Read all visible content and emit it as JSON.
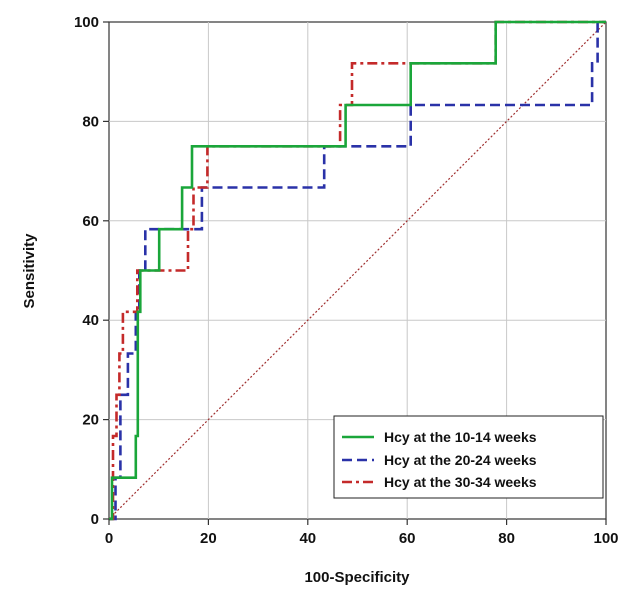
{
  "chart_data": {
    "type": "line",
    "xlabel": "100-Specificity",
    "ylabel": "Sensitivity",
    "xlim": [
      0,
      100
    ],
    "ylim": [
      0,
      100
    ],
    "x_ticks": [
      0,
      20,
      40,
      60,
      80,
      100
    ],
    "y_ticks": [
      0,
      20,
      40,
      60,
      80,
      100
    ],
    "grid": true,
    "legend_position": "bottom-right",
    "series": [
      {
        "name": "Hcy at the 10-14 weeks",
        "color": "#1aa63a",
        "style": "solid",
        "x": [
          0,
          0.6,
          0.6,
          1.8,
          1.8,
          5.4,
          5.4,
          5.8,
          5.8,
          6.3,
          6.3,
          10.1,
          10.1,
          14.7,
          14.7,
          16.7,
          16.7,
          47.6,
          47.6,
          60.7,
          60.7,
          77.8,
          77.8,
          100
        ],
        "y": [
          0,
          0,
          8.3,
          8.3,
          8.3,
          8.3,
          16.7,
          16.7,
          41.7,
          41.7,
          50.0,
          50.0,
          58.3,
          58.3,
          66.7,
          66.7,
          75.0,
          75.0,
          83.3,
          83.3,
          91.7,
          91.7,
          100,
          100
        ]
      },
      {
        "name": "Hcy at the 20-24 weeks",
        "color": "#2a32a8",
        "style": "dashed",
        "x": [
          0,
          1.3,
          1.3,
          2.3,
          2.3,
          3.8,
          3.8,
          5.4,
          5.4,
          6.1,
          6.1,
          7.3,
          7.3,
          15.5,
          15.5,
          18.7,
          18.7,
          43.3,
          43.3,
          60.7,
          60.7,
          97.2,
          97.2,
          98.3,
          98.3,
          100
        ],
        "y": [
          0,
          0,
          8.3,
          8.3,
          25.0,
          25.0,
          33.3,
          33.3,
          41.7,
          41.7,
          50.0,
          50.0,
          58.3,
          58.3,
          58.3,
          58.3,
          66.7,
          66.7,
          75.0,
          75.0,
          83.3,
          83.3,
          91.7,
          91.7,
          100,
          100
        ]
      },
      {
        "name": "Hcy at the 30-34 weeks",
        "color": "#c42a2a",
        "style": "dashdot",
        "x": [
          0,
          0.8,
          0.8,
          1.5,
          1.5,
          2.1,
          2.1,
          2.8,
          2.8,
          5.7,
          5.7,
          7.8,
          7.8,
          15.9,
          15.9,
          17.0,
          17.0,
          19.8,
          19.8,
          46.5,
          46.5,
          48.9,
          48.9,
          77.8,
          77.8,
          100
        ],
        "y": [
          0,
          0,
          16.7,
          16.7,
          25.0,
          25.0,
          33.3,
          33.3,
          41.7,
          41.7,
          50.0,
          50.0,
          50.0,
          50.0,
          58.3,
          58.3,
          66.7,
          66.7,
          75.0,
          75.0,
          83.3,
          83.3,
          91.7,
          91.7,
          100,
          100
        ]
      },
      {
        "name": "",
        "color": "#a03030",
        "style": "dotted",
        "x": [
          0,
          100
        ],
        "y": [
          0,
          100
        ]
      }
    ]
  }
}
